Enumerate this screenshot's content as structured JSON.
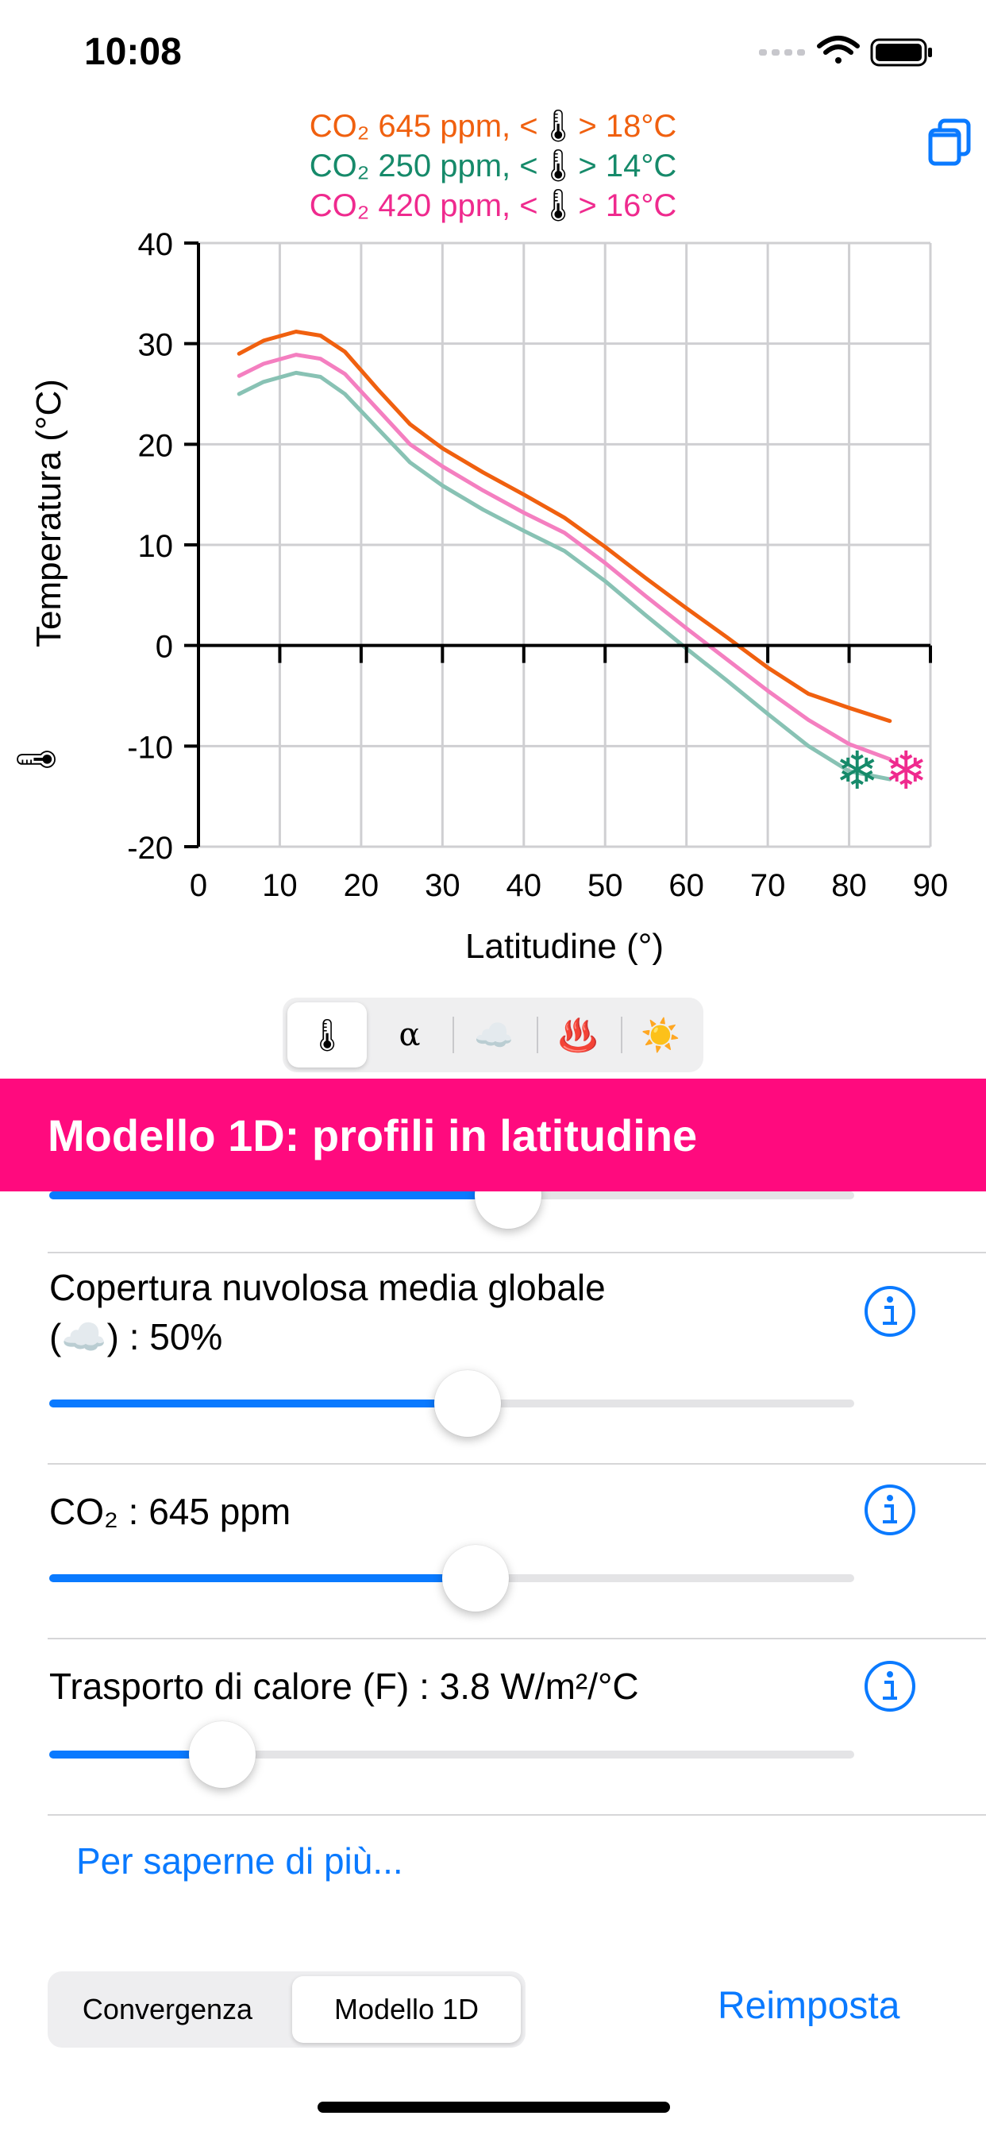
{
  "status_bar": {
    "time": "10:08"
  },
  "legend": [
    {
      "co2": "CO₂ 645 ppm, <",
      "temp": "> 18°C",
      "color": "#f0600f"
    },
    {
      "co2": "CO₂ 250 ppm, <",
      "temp": "> 14°C",
      "color": "#168a6a"
    },
    {
      "co2": "CO₂ 420 ppm, <",
      "temp": "> 16°C",
      "color": "#ef2a8e"
    }
  ],
  "chart_data": {
    "type": "line",
    "xlabel": "Latitudine (°)",
    "ylabel": "Temperatura (°C)",
    "xlim": [
      0,
      90
    ],
    "ylim": [
      -20,
      40
    ],
    "xticks": [
      "0",
      "10",
      "20",
      "30",
      "40",
      "50",
      "60",
      "70",
      "80",
      "90"
    ],
    "yticks": [
      "40",
      "30",
      "20",
      "10",
      "0",
      "-10",
      "-20"
    ],
    "grid": true,
    "x": [
      5,
      8,
      12,
      15,
      18,
      22,
      26,
      30,
      35,
      40,
      45,
      50,
      55,
      60,
      65,
      70,
      75,
      80,
      85
    ],
    "series": [
      {
        "color": "#f0600f",
        "values": [
          29,
          30.3,
          31.2,
          30.8,
          29.2,
          25.5,
          22,
          19.6,
          17.2,
          15,
          12.7,
          9.8,
          6.7,
          3.7,
          0.8,
          -2.2,
          -4.8,
          -6.2,
          -7.5
        ]
      },
      {
        "color": "#f47fc0",
        "values": [
          26.8,
          28,
          28.9,
          28.5,
          27,
          23.5,
          20,
          17.8,
          15.4,
          13.2,
          11.2,
          8.2,
          4.9,
          1.7,
          -1.4,
          -4.5,
          -7.4,
          -9.8,
          -11.3
        ]
      },
      {
        "color": "#88c2b4",
        "values": [
          25,
          26.2,
          27.1,
          26.7,
          25,
          21.6,
          18.2,
          15.9,
          13.5,
          11.4,
          9.4,
          6.4,
          3.0,
          -0.3,
          -3.5,
          -6.8,
          -10,
          -12.5,
          -13.3
        ]
      }
    ],
    "snowflakes": [
      {
        "glyph": "❄",
        "x": 81,
        "y": -12.5,
        "color": "#168a6a"
      },
      {
        "glyph": "❄",
        "x": 87,
        "y": -12.5,
        "color": "#ef2a8e"
      }
    ],
    "thermometer_glyph": "🌡"
  },
  "chart_tabs": [
    {
      "icon": "thermometer-icon",
      "label": "🌡",
      "selected": true
    },
    {
      "icon": "albedo-icon",
      "label": "α",
      "selected": false
    },
    {
      "icon": "cloud-icon",
      "label": "☁️",
      "selected": false
    },
    {
      "icon": "heat-icon",
      "label": "♨️",
      "selected": false
    },
    {
      "icon": "sun-icon",
      "label": "☀️",
      "selected": false
    }
  ],
  "header": {
    "title": "Modello 1D: profili in latitudine"
  },
  "controls": [
    {
      "label_line1": "Copertura nuvolosa media globale",
      "label_line2": "(☁️) : 50%",
      "value": 0.52
    },
    {
      "label_line1": "CO₂ : 645 ppm",
      "value": 0.53
    },
    {
      "label_line1": "Trasporto di calore (F) : 3.8 W/m²/°C",
      "value": 0.215
    }
  ],
  "partial_slider_value": 0.57,
  "learn_more": "Per saperne di più...",
  "mode_segment": {
    "left": "Convergenza",
    "right": "Modello 1D",
    "selected": "Modello 1D"
  },
  "reset": "Reimposta"
}
